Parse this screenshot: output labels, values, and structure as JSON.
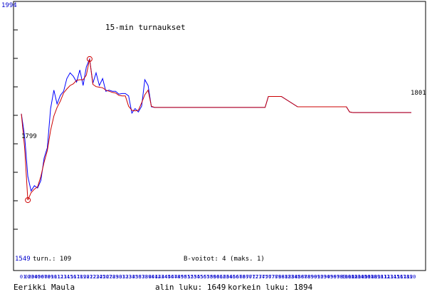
{
  "chart_data": {
    "type": "line",
    "title": "15-min turnaukset",
    "y_max_label": "1994",
    "y_min_label": "1549",
    "start_value_label": "1799",
    "end_value_label": "1801",
    "games_label": "turn.: 109",
    "bonus_label": "B-voitot: 4 (maks. 1)",
    "player": "Eerikki Maula",
    "low_label": "alin luku: 1649",
    "high_label": "korkein luku: 1894",
    "ylim": [
      1549,
      1994
    ],
    "xlim": [
      0,
      120
    ],
    "x_ticks": [
      "0",
      "1",
      "02",
      "03",
      "04",
      "05",
      "06",
      "07",
      "08",
      "09",
      "10",
      "11",
      "12",
      "13",
      "14",
      "15",
      "16",
      "17",
      "18",
      "19",
      "20",
      "21",
      "22",
      "23",
      "24",
      "25",
      "26",
      "27",
      "28",
      "29",
      "30",
      "31",
      "32",
      "33",
      "34",
      "35",
      "36",
      "37",
      "38",
      "39",
      "40",
      "41",
      "42",
      "43",
      "44",
      "45",
      "46",
      "47",
      "48",
      "49",
      "50",
      "51",
      "52",
      "53",
      "54",
      "55",
      "56",
      "57",
      "58",
      "59",
      "60",
      "61",
      "62",
      "63",
      "64",
      "65",
      "66",
      "67",
      "68",
      "69",
      "70",
      "71",
      "72",
      "73",
      "74",
      "75",
      "76",
      "77",
      "78",
      "79",
      "80",
      "81",
      "82",
      "83",
      "84",
      "85",
      "86",
      "87",
      "88",
      "89",
      "90",
      "91",
      "92",
      "93",
      "94",
      "95",
      "96",
      "97",
      "98",
      "99",
      "100",
      "101",
      "102",
      "103",
      "104",
      "105",
      "106",
      "107",
      "108",
      "109",
      "110",
      "111",
      "112",
      "113",
      "114",
      "115",
      "116",
      "117",
      "118",
      "119",
      "120"
    ],
    "y_gridlines": 9,
    "series": [
      {
        "color": "#0000ff",
        "x": [
          0,
          1,
          2,
          3,
          4,
          5,
          6,
          7,
          8,
          9,
          10,
          11,
          12,
          13,
          14,
          15,
          16,
          17,
          18,
          19,
          20,
          21,
          22,
          23,
          24,
          25,
          26,
          27,
          28,
          29,
          30,
          31,
          32,
          33,
          34,
          35,
          36,
          37,
          38,
          39,
          40,
          41,
          42,
          43,
          44,
          45,
          46,
          47,
          48,
          49,
          50,
          60,
          70,
          75,
          76,
          78,
          80,
          85,
          86,
          90,
          95,
          100,
          101,
          102,
          103,
          110,
          120
        ],
        "y": [
          1799,
          1760,
          1690,
          1665,
          1674,
          1670,
          1683,
          1722,
          1740,
          1808,
          1840,
          1816,
          1831,
          1838,
          1860,
          1870,
          1864,
          1854,
          1875,
          1848,
          1880,
          1894,
          1852,
          1870,
          1848,
          1860,
          1838,
          1840,
          1838,
          1838,
          1833,
          1834,
          1834,
          1830,
          1800,
          1808,
          1802,
          1812,
          1858,
          1848,
          1811,
          1810,
          1810,
          1810,
          1810,
          1810,
          1810,
          1810,
          1810,
          1810,
          1810,
          1810,
          1810,
          1810,
          1829,
          1829,
          1829,
          1811,
          1811,
          1811,
          1811,
          1811,
          1802,
          1801,
          1801,
          1801,
          1801
        ]
      },
      {
        "color": "#cc0000",
        "x": [
          0,
          1,
          2,
          3,
          4,
          5,
          6,
          7,
          8,
          9,
          10,
          11,
          12,
          13,
          14,
          15,
          16,
          17,
          18,
          19,
          20,
          21,
          22,
          23,
          24,
          25,
          26,
          27,
          28,
          29,
          30,
          31,
          32,
          33,
          34,
          35,
          36,
          37,
          38,
          39,
          40,
          41,
          42,
          43,
          44,
          45,
          46,
          47,
          48,
          49,
          50,
          60,
          70,
          75,
          76,
          78,
          80,
          85,
          86,
          90,
          95,
          100,
          101,
          102,
          103,
          110,
          120
        ],
        "y": [
          1799,
          1740,
          1649,
          1662,
          1668,
          1672,
          1690,
          1715,
          1735,
          1770,
          1795,
          1810,
          1821,
          1835,
          1842,
          1848,
          1851,
          1857,
          1858,
          1858,
          1866,
          1894,
          1850,
          1846,
          1845,
          1844,
          1840,
          1838,
          1836,
          1835,
          1831,
          1830,
          1830,
          1812,
          1805,
          1804,
          1805,
          1818,
          1832,
          1840,
          1812,
          1810,
          1810,
          1810,
          1810,
          1810,
          1810,
          1810,
          1810,
          1810,
          1810,
          1810,
          1810,
          1810,
          1829,
          1829,
          1829,
          1811,
          1811,
          1811,
          1811,
          1811,
          1802,
          1801,
          1801,
          1801,
          1801
        ]
      }
    ],
    "markers": [
      {
        "x": 2,
        "y": 1649
      },
      {
        "x": 21,
        "y": 1894
      }
    ]
  }
}
